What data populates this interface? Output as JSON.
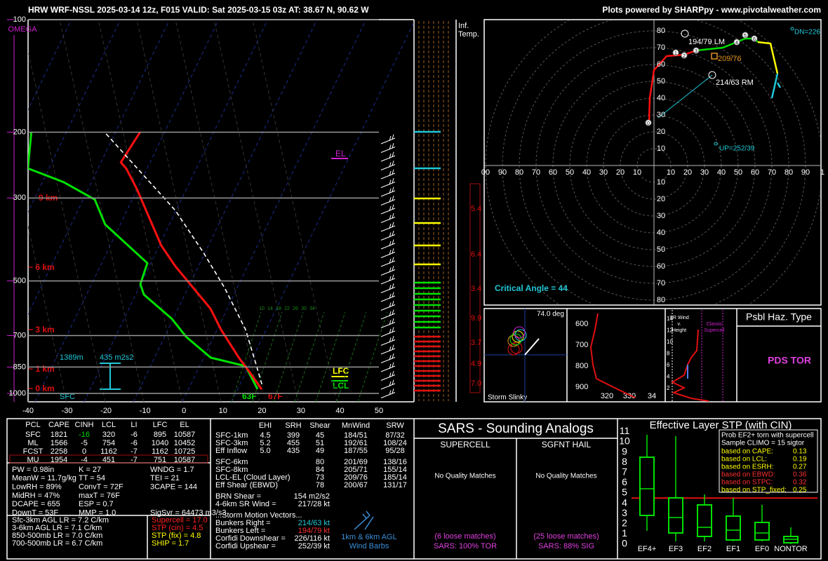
{
  "header": {
    "title": "HRW WRF-NSSL 2025-03-14 12z, F015  VALID: Sat 2025-03-15 03z  AT: 38.67 N, 90.62 W",
    "credit": "Plots powered by SHARPpy - www.pivotalweather.com"
  },
  "skewt": {
    "omega": "OMEGA",
    "pressure_ticks": [
      100,
      200,
      300,
      500,
      700,
      850,
      1000
    ],
    "temperature_ticks": [
      -40,
      -30,
      -20,
      -10,
      0,
      10,
      20,
      30,
      40,
      50
    ],
    "height_labels": [
      "9 km",
      "~ 6 km",
      "~ 3 km",
      "~ 1 km",
      "~ 0 km"
    ],
    "temperature": {
      "pressure": [
        975,
        874,
        802,
        675,
        593,
        457,
        402,
        346,
        284,
        250,
        241,
        200
      ],
      "values": [
        18.4,
        13.0,
        8.6,
        0.6,
        -4.7,
        -18.9,
        -25.1,
        -30.8,
        -38.3,
        -43.6,
        -45.7,
        -44.5
      ]
    },
    "dewpoint": {
      "pressure": [
        974,
        845,
        802,
        705,
        632,
        544,
        510,
        448,
        353,
        303,
        272,
        250,
        200
      ],
      "values": [
        17.3,
        11.4,
        1.4,
        -7.5,
        -13.3,
        -23.5,
        -25.7,
        -26.5,
        -42.1,
        -47.8,
        -58.0,
        -68.8,
        -72.4
      ]
    },
    "parcel": {
      "pressure": [
        945,
        837,
        675,
        521,
        420,
        324,
        201
      ],
      "values": [
        17.8,
        13.9,
        6.9,
        -3.7,
        -13.4,
        -25.8,
        -53.3
      ]
    },
    "el": "EL",
    "lfc": "LFC",
    "lcl": "LCL",
    "inflow_depth": "1389m",
    "inflow_srh": "435 m2s2",
    "sfc": "SFC",
    "sfc_dewpoint": "63F",
    "sfc_temperature": "67F",
    "mixing_ratios": [
      10,
      14,
      18,
      22,
      26,
      30,
      34
    ]
  },
  "inferred_temp": {
    "title": [
      "Inf.",
      "Temp."
    ],
    "labels": [
      "5.4",
      "6.4",
      "3.4",
      "9.9",
      "3.7",
      "4.9",
      "7.0"
    ]
  },
  "hodograph": {
    "rings_up": [
      80,
      70,
      60,
      50,
      40,
      30,
      20,
      10
    ],
    "axis_left": [
      "00",
      "90",
      "80",
      "70",
      "60",
      "50",
      "40",
      "30",
      "20",
      "10"
    ],
    "axis_right": [
      "10",
      "20",
      "30",
      "40",
      "50",
      "60",
      "70",
      "80",
      "90",
      "1"
    ],
    "rings_down": [
      10,
      20,
      30,
      40,
      50,
      60,
      70,
      80
    ],
    "markers": [
      "0",
      "1",
      "2",
      "3",
      "4",
      "5",
      "6"
    ],
    "left_mover": "194/79 LM",
    "mean_wind": "209/76",
    "right_mover": "214/63 RM",
    "downshear": "DN=226",
    "upshear": "UP=252/39",
    "critical_angle": "Critical Angle = 44"
  },
  "slinky": {
    "angle": "74.0 deg",
    "label": "Storm Slinky"
  },
  "theta_e": {
    "pressure_labels": [
      600,
      700,
      800,
      900
    ],
    "x_labels": [
      "320",
      "330",
      "34"
    ]
  },
  "sr_wind": {
    "title": [
      "SR Wind",
      "v.",
      "Height"
    ],
    "y_labels": [
      14,
      12,
      10,
      8,
      6,
      4,
      2
    ],
    "classic": [
      "Classic",
      "Supercell"
    ]
  },
  "hazard": {
    "title": "Psbl Haz. Type",
    "value": "PDS TOR"
  },
  "parcels": {
    "header": [
      "PCL",
      "CAPE",
      "CINH",
      "LCL",
      "LI",
      "LFC",
      "EL"
    ],
    "rows": [
      [
        "SFC",
        "1821",
        "-16",
        "320",
        "-6",
        "895",
        "10587"
      ],
      [
        "ML",
        "1566",
        "-5",
        "754",
        "-6",
        "1040",
        "10452"
      ],
      [
        "FCST",
        "2258",
        "0",
        "1162",
        "-7",
        "1162",
        "10725"
      ],
      [
        "MU",
        "1954",
        "-4",
        "451",
        "-7",
        "751",
        "10587"
      ]
    ]
  },
  "indices": [
    [
      "PW = 0.98in",
      "K = 27",
      "WNDG = 1.7"
    ],
    [
      "MeanW = 11.7g/kg",
      "TT = 54",
      "TEI = 21"
    ],
    [
      "LowRH = 89%",
      "ConvT = 72F",
      "3CAPE = 144"
    ],
    [
      "MidRH = 47%",
      "maxT = 76F"
    ],
    [
      "DCAPE = 655",
      "ESP = 0.7"
    ],
    [
      "DownT = 53F",
      "MMP = 1.0",
      "SigSvr = 64473 m3/s3"
    ]
  ],
  "lapse_rates": [
    "Sfc-3km AGL LR = 7.2 C/km",
    "3-6km AGL LR = 7.1 C/km",
    "850-500mb LR = 7.0 C/km",
    "700-500mb LR = 6.7 C/km"
  ],
  "severe": [
    "Supercell = 17.0",
    "STP (cin) = 4.5",
    "STP (fix) = 4.8",
    "SHIP = 1.7"
  ],
  "kinematics": {
    "header": [
      "EHI",
      "SRH",
      "Shear",
      "MnWind",
      "SRW"
    ],
    "rows": [
      [
        "SFC-1km",
        "4.5",
        "399",
        "45",
        "184/51",
        "87/32"
      ],
      [
        "SFC-3km",
        "5.2",
        "455",
        "51",
        "192/61",
        "108/24"
      ],
      [
        "Eff Inflow",
        "5.0",
        "435",
        "49",
        "187/55",
        "95/28"
      ]
    ],
    "shear_rows": [
      [
        "SFC-6km",
        "80",
        "201/69",
        "138/16"
      ],
      [
        "SFC-8km",
        "84",
        "205/71",
        "155/14"
      ],
      [
        "LCL-EL (Cloud Layer)",
        "73",
        "209/76",
        "185/14"
      ],
      [
        "Eff Shear (EBWD)",
        "78",
        "200/67",
        "131/17"
      ]
    ],
    "extra": [
      [
        "BRN Shear =",
        "154 m2/s2"
      ],
      [
        "4-6km SR Wind =",
        "217/28 kt"
      ]
    ],
    "motion_title": "...Storm Motion Vectors...",
    "motions": [
      [
        "Bunkers Right =",
        "214/63 kt"
      ],
      [
        "Bunkers Left =",
        "194/79 kt"
      ],
      [
        "Corfidi Downshear =",
        "226/116 kt"
      ],
      [
        "Corfidi Upshear =",
        "252/39 kt"
      ]
    ],
    "barbs_label": [
      "1km & 6km AGL",
      "Wind Barbs"
    ]
  },
  "sars": {
    "title": "SARS - Sounding Analogs",
    "columns": [
      {
        "title": "SUPERCELL",
        "result": "No Quality Matches",
        "loose": "(6 loose matches)",
        "sars": "SARS: 100% TOR"
      },
      {
        "title": "SGFNT HAIL",
        "result": "No Quality Matches",
        "loose": "(25 loose matches)",
        "sars": "SARS: 88% SIG"
      }
    ]
  },
  "stp": {
    "title": "Effective Layer STP (with CIN)",
    "yticks": [
      0,
      1,
      2,
      3,
      4,
      5,
      6,
      7,
      8,
      9,
      10,
      11
    ],
    "categories": [
      "EF4+",
      "EF3",
      "EF2",
      "EF1",
      "EF0",
      "NONTOR"
    ],
    "prob_title": [
      "Prob EF2+ torn with supercell",
      "Sample CLIMO = 15 sigtor"
    ],
    "prob_rows": [
      [
        "based on CAPE:",
        "0.13"
      ],
      [
        "based on LCL:",
        "0.19"
      ],
      [
        "based on ESRH:",
        "0.27"
      ],
      [
        "based on EBWD:",
        "0.36"
      ],
      [
        "based on STPC:",
        "0.32"
      ],
      [
        "based on STP_fixed:",
        "0.25"
      ]
    ]
  }
}
